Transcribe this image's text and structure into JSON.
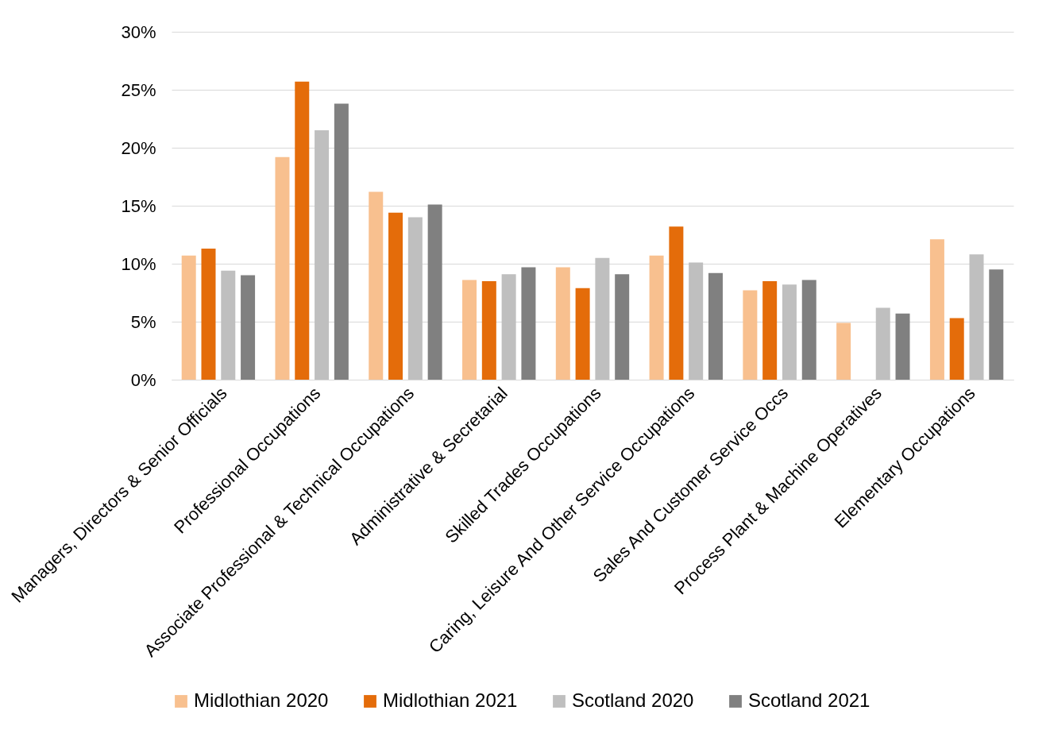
{
  "chart_data": {
    "type": "bar",
    "categories": [
      "Managers, Directors & Senior Officials",
      "Professional Occupations",
      "Associate Professional & Technical Occupations",
      "Administrative & Secretarial",
      "Skilled Trades Occupations",
      "Caring, Leisure And Other Service Occupations",
      "Sales And Customer Service Occs",
      "Process Plant & Machine Operatives",
      "Elementary Occupations"
    ],
    "series": [
      {
        "name": "Midlothian 2020",
        "color": "#f8c08f",
        "values": [
          10.7,
          19.2,
          16.2,
          8.6,
          9.7,
          10.7,
          7.7,
          4.9,
          12.1
        ]
      },
      {
        "name": "Midlothian 2021",
        "color": "#e46c0a",
        "values": [
          11.3,
          25.7,
          14.4,
          8.5,
          7.9,
          13.2,
          8.5,
          null,
          5.3
        ]
      },
      {
        "name": "Scotland 2020",
        "color": "#bfbfbf",
        "values": [
          9.4,
          21.5,
          14.0,
          9.1,
          10.5,
          10.1,
          8.2,
          6.2,
          10.8
        ]
      },
      {
        "name": "Scotland 2021",
        "color": "#808080",
        "values": [
          9.0,
          23.8,
          15.1,
          9.7,
          9.1,
          9.2,
          8.6,
          5.7,
          9.5
        ]
      }
    ],
    "ylim": [
      0,
      30
    ],
    "yticks": [
      {
        "value": 0,
        "label": "0%"
      },
      {
        "value": 5,
        "label": "5%"
      },
      {
        "value": 10,
        "label": "10%"
      },
      {
        "value": 15,
        "label": "15%"
      },
      {
        "value": 20,
        "label": "20%"
      },
      {
        "value": 25,
        "label": "25%"
      },
      {
        "value": 30,
        "label": "30%"
      }
    ],
    "grid": "y",
    "legend": "bottom"
  }
}
